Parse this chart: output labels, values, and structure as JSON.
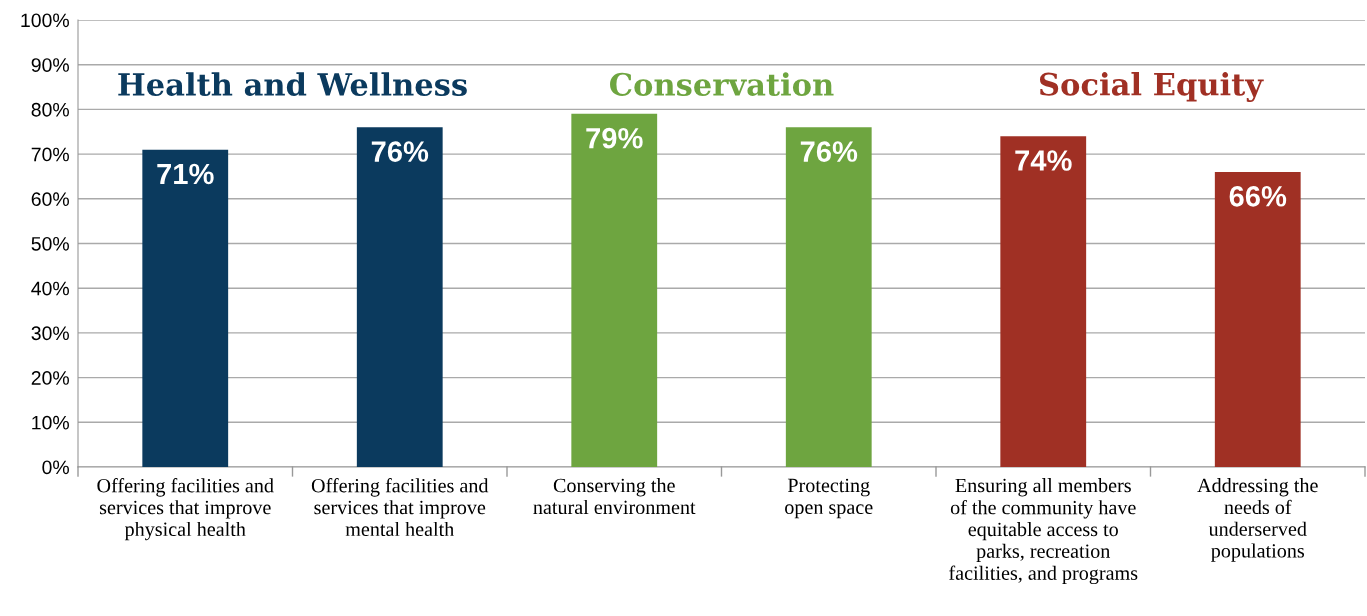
{
  "chart_data": {
    "type": "bar",
    "categories": [
      "Offering facilities and\nservices that improve\nphysical health",
      "Offering facilities and\nservices that improve\nmental health",
      "Conserving the\nnatural environment",
      "Protecting\nopen space",
      "Ensuring all members\nof the community have\nequitable access to\nparks, recreation\nfacilities, and programs",
      "Addressing the\nneeds of\nunderserved\npopulations"
    ],
    "values": [
      71,
      76,
      79,
      76,
      74,
      66
    ],
    "colors": [
      "#0b3a5e",
      "#0b3a5e",
      "#6ea540",
      "#6ea540",
      "#a03024",
      "#a03024"
    ],
    "value_labels": [
      "71%",
      "76%",
      "79%",
      "76%",
      "74%",
      "66%"
    ],
    "annotations": [
      "Health and Wellness",
      "Conservation",
      "Social Equity"
    ],
    "ylim": [
      0,
      100
    ],
    "yticks": [
      {
        "value": 0,
        "label": "0%"
      },
      {
        "value": 10,
        "label": "10%"
      },
      {
        "value": 20,
        "label": "20%"
      },
      {
        "value": 30,
        "label": "30%"
      },
      {
        "value": 40,
        "label": "40%"
      },
      {
        "value": 50,
        "label": "50%"
      },
      {
        "value": 60,
        "label": "60%"
      },
      {
        "value": 70,
        "label": "70%"
      },
      {
        "value": 80,
        "label": "80%"
      },
      {
        "value": 90,
        "label": "90%"
      },
      {
        "value": 100,
        "label": "100%"
      }
    ],
    "grid": "y"
  }
}
